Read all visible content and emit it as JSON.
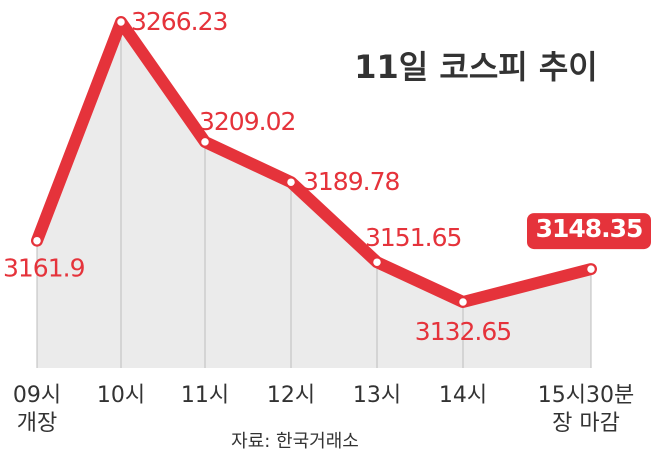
{
  "chart_data": {
    "type": "area",
    "title": "11일 코스피 추이",
    "categories": [
      "09시\n개장",
      "10시",
      "11시",
      "12시",
      "13시",
      "14시",
      "15시30분\n장 마감"
    ],
    "values": [
      3161.9,
      3266.23,
      3209.02,
      3189.78,
      3151.65,
      3132.65,
      3148.35
    ],
    "value_labels": [
      "3161.9",
      "3266.23",
      "3209.02",
      "3189.78",
      "3151.65",
      "3132.65",
      "3148.35"
    ],
    "xlabel": "",
    "ylabel": "",
    "grid": false,
    "highlight_last": true,
    "source": "자료: 한국거래소",
    "colors": {
      "line": "#e5333b",
      "area": "#ebebeb",
      "text": "#333333",
      "marker_fill": "#ffffff"
    }
  }
}
